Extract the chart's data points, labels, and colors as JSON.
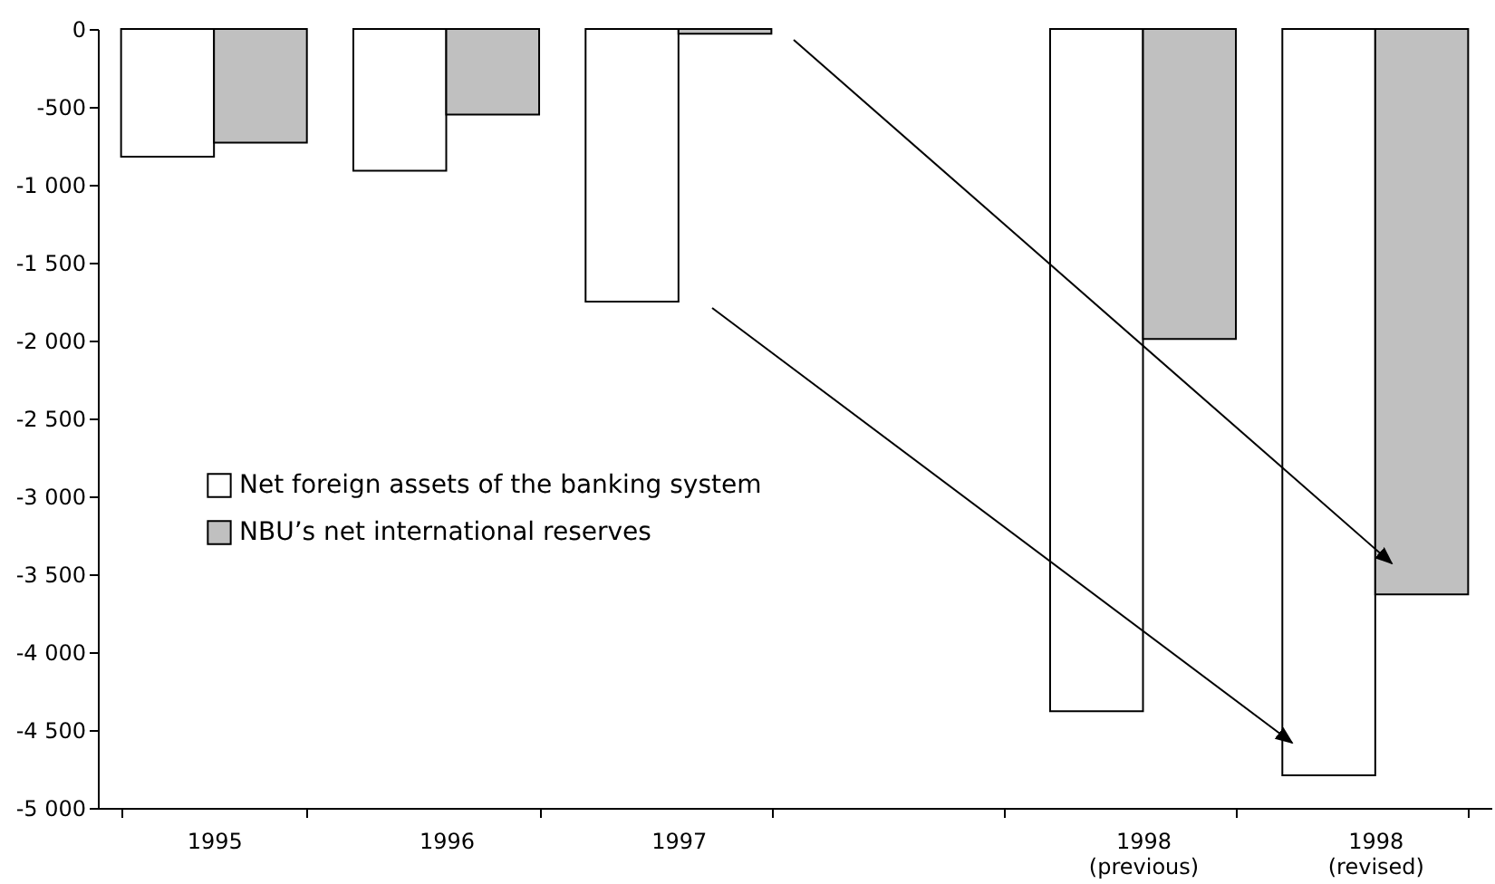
{
  "chart_data": {
    "type": "bar",
    "categories": [
      "1995",
      "1996",
      "1997",
      null,
      "1998\n(previous)",
      "1998\n(revised)"
    ],
    "series": [
      {
        "name": "Net foreign assets of the banking system",
        "color": "#ffffff",
        "values": [
          -820,
          -910,
          -1750,
          null,
          -4380,
          -4790
        ]
      },
      {
        "name": "NBU’s net international reserves",
        "color": "#c0c0c0",
        "values": [
          -730,
          -550,
          -30,
          null,
          -1990,
          -3630
        ]
      }
    ],
    "ylim": [
      -5000,
      0
    ],
    "yticks": [
      {
        "value": 0,
        "label": "0"
      },
      {
        "value": -500,
        "label": "-500"
      },
      {
        "value": -1000,
        "label": "-1 000"
      },
      {
        "value": -1500,
        "label": "-1 500"
      },
      {
        "value": -2000,
        "label": "-2 000"
      },
      {
        "value": -2500,
        "label": "-2 500"
      },
      {
        "value": -3000,
        "label": "-3 000"
      },
      {
        "value": -3500,
        "label": "-3 500"
      },
      {
        "value": -4000,
        "label": "-4 000"
      },
      {
        "value": -4500,
        "label": "-4 500"
      },
      {
        "value": -5000,
        "label": "-5 000"
      }
    ],
    "legend": "left",
    "grid": false
  }
}
